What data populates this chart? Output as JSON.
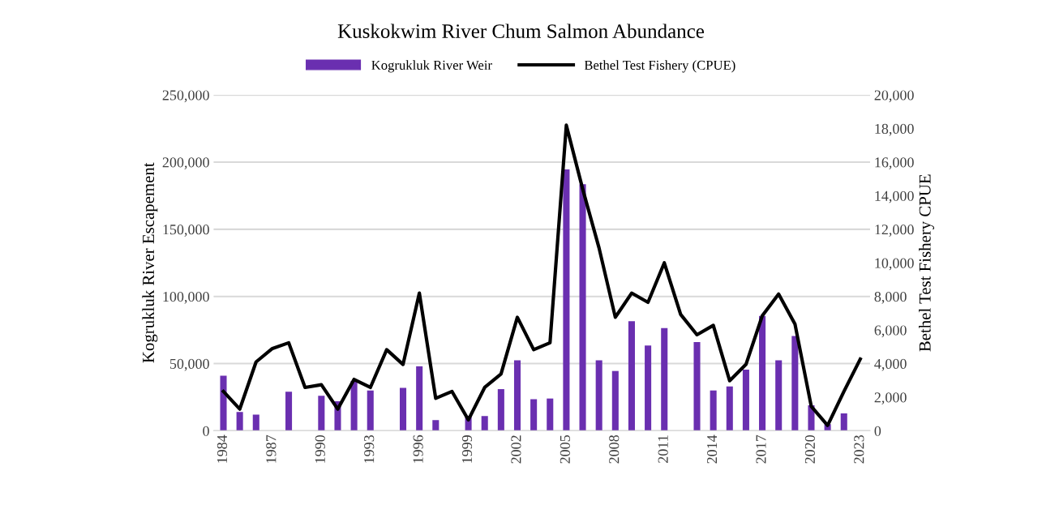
{
  "chart_data": {
    "type": "bar",
    "title": "Kuskokwim River Chum Salmon Abundance",
    "categories": [
      "1984",
      null,
      null,
      "1987",
      null,
      null,
      "1990",
      null,
      null,
      "1993",
      null,
      null,
      "1996",
      null,
      null,
      "1999",
      null,
      null,
      "2002",
      null,
      null,
      "2005",
      null,
      null,
      "2008",
      null,
      null,
      "2011",
      null,
      null,
      "2014",
      null,
      null,
      "2017",
      null,
      null,
      "2020",
      null,
      null,
      "2023"
    ],
    "series": [
      {
        "name": "Kogrukluk River Weir",
        "color": "#6a2fb0",
        "values": [
          41000,
          14000,
          12000,
          null,
          29000,
          null,
          26000,
          22000,
          37000,
          30000,
          null,
          32000,
          48000,
          8000,
          null,
          11000,
          11000,
          31000,
          52500,
          23500,
          24000,
          194500,
          183500,
          52500,
          44500,
          81500,
          63500,
          76500,
          null,
          66000,
          30000,
          33000,
          45500,
          85500,
          52500,
          70500,
          19000,
          5000,
          13000,
          null
        ]
      },
      {
        "name": "Bethel Test Fishery (CPUE)",
        "type": "line",
        "axis": "y2",
        "color": "#000000",
        "values": [
          2340,
          1290,
          4100,
          4900,
          5240,
          2580,
          2740,
          1290,
          3060,
          2580,
          4830,
          3950,
          8200,
          1930,
          2340,
          650,
          2580,
          3380,
          6760,
          4830,
          5240,
          18200,
          14400,
          10900,
          6760,
          8200,
          7650,
          10000,
          6930,
          5720,
          6280,
          2980,
          3950,
          6850,
          8140,
          6360,
          1450,
          320,
          2340,
          4270
        ]
      }
    ],
    "ylabel": "Kogrukluk River Escapement",
    "y2label": "Bethel Test Fishery CPUE",
    "ylim": [
      0,
      250000
    ],
    "yticks": [
      {
        "value": 0,
        "label": "0"
      },
      {
        "value": 50000,
        "label": "50,000"
      },
      {
        "value": 100000,
        "label": "100,000"
      },
      {
        "value": 150000,
        "label": "150,000"
      },
      {
        "value": 200000,
        "label": "200,000"
      },
      {
        "value": 250000,
        "label": "250,000"
      }
    ],
    "y2lim": [
      0,
      20000
    ],
    "y2ticks": [
      {
        "value": 0,
        "label": "0"
      },
      {
        "value": 2000,
        "label": "2,000"
      },
      {
        "value": 4000,
        "label": "4,000"
      },
      {
        "value": 6000,
        "label": "6,000"
      },
      {
        "value": 8000,
        "label": "8,000"
      },
      {
        "value": 10000,
        "label": "10,000"
      },
      {
        "value": 12000,
        "label": "12,000"
      },
      {
        "value": 14000,
        "label": "14,000"
      },
      {
        "value": 16000,
        "label": "16,000"
      },
      {
        "value": 18000,
        "label": "18,000"
      },
      {
        "value": 20000,
        "label": "20,000"
      }
    ],
    "grid": "y",
    "legend": "top"
  }
}
